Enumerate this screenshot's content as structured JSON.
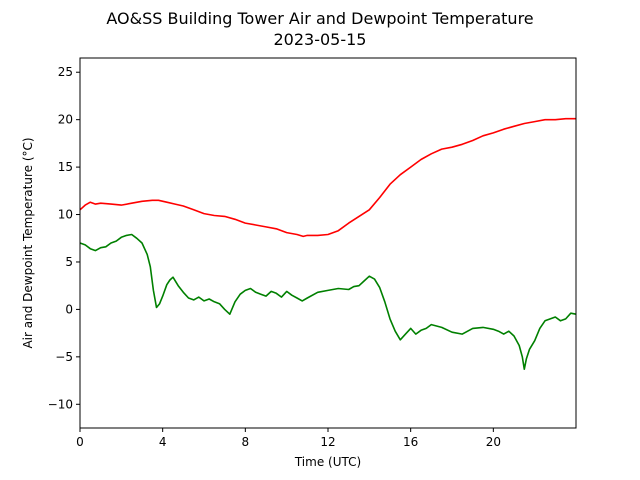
{
  "chart_data": {
    "type": "line",
    "title": "AO&SS Building Tower Air and Dewpoint Temperature",
    "subtitle": "2023-05-15",
    "xlabel": "Time (UTC)",
    "ylabel": "Air and Dewpoint Temperature (°C)",
    "xlim": [
      0,
      24
    ],
    "ylim": [
      -12.5,
      26.5
    ],
    "xticks": [
      0,
      4,
      8,
      12,
      16,
      20
    ],
    "yticks": [
      -10,
      -5,
      0,
      5,
      10,
      15,
      20,
      25
    ],
    "grid": false,
    "legend": "none",
    "series": [
      {
        "color": "#ff0000",
        "x": [
          0,
          0.25,
          0.5,
          0.75,
          1,
          1.5,
          2,
          2.5,
          3,
          3.5,
          3.8,
          4.2,
          4.6,
          5,
          5.5,
          6,
          6.5,
          7,
          7.5,
          8,
          8.5,
          9,
          9.5,
          10,
          10.5,
          10.8,
          11,
          11.5,
          12,
          12.5,
          13,
          13.5,
          14,
          14.5,
          15,
          15.5,
          16,
          16.5,
          17,
          17.5,
          18,
          18.5,
          19,
          19.5,
          20,
          20.5,
          21,
          21.5,
          22,
          22.5,
          23,
          23.5,
          24
        ],
        "y": [
          10.5,
          11.0,
          11.3,
          11.1,
          11.2,
          11.1,
          11.0,
          11.2,
          11.4,
          11.5,
          11.5,
          11.3,
          11.1,
          10.9,
          10.5,
          10.1,
          9.9,
          9.8,
          9.5,
          9.1,
          8.9,
          8.7,
          8.5,
          8.1,
          7.9,
          7.7,
          7.8,
          7.8,
          7.9,
          8.3,
          9.1,
          9.8,
          10.5,
          11.8,
          13.2,
          14.2,
          15.0,
          15.8,
          16.4,
          16.9,
          17.1,
          17.4,
          17.8,
          18.3,
          18.6,
          19.0,
          19.3,
          19.6,
          19.8,
          20.0,
          20.0,
          20.1,
          20.1
        ]
      },
      {
        "color": "#008000",
        "x": [
          0,
          0.25,
          0.5,
          0.75,
          1,
          1.25,
          1.5,
          1.75,
          2,
          2.25,
          2.5,
          2.75,
          3,
          3.25,
          3.4,
          3.55,
          3.7,
          3.85,
          4,
          4.2,
          4.35,
          4.5,
          4.75,
          5,
          5.25,
          5.5,
          5.75,
          6,
          6.25,
          6.5,
          6.75,
          7,
          7.25,
          7.5,
          7.75,
          8,
          8.25,
          8.5,
          8.75,
          9,
          9.25,
          9.5,
          9.75,
          10,
          10.25,
          10.5,
          10.75,
          11,
          11.5,
          12,
          12.5,
          13,
          13.25,
          13.5,
          13.75,
          14,
          14.25,
          14.5,
          14.75,
          15,
          15.25,
          15.5,
          15.75,
          16,
          16.25,
          16.5,
          16.75,
          17,
          17.5,
          18,
          18.5,
          19,
          19.5,
          20,
          20.25,
          20.5,
          20.75,
          21,
          21.25,
          21.4,
          21.5,
          21.6,
          21.75,
          22,
          22.25,
          22.5,
          22.75,
          23,
          23.25,
          23.5,
          23.75,
          24
        ],
        "y": [
          7.0,
          6.8,
          6.4,
          6.2,
          6.5,
          6.6,
          7.0,
          7.2,
          7.6,
          7.8,
          7.9,
          7.5,
          7.0,
          5.8,
          4.5,
          2.0,
          0.2,
          0.6,
          1.4,
          2.6,
          3.1,
          3.4,
          2.5,
          1.8,
          1.2,
          1.0,
          1.3,
          0.9,
          1.1,
          0.8,
          0.6,
          0.0,
          -0.5,
          0.8,
          1.6,
          2.0,
          2.2,
          1.8,
          1.6,
          1.4,
          1.9,
          1.7,
          1.3,
          1.9,
          1.5,
          1.2,
          0.9,
          1.2,
          1.8,
          2.0,
          2.2,
          2.1,
          2.4,
          2.5,
          3.0,
          3.5,
          3.2,
          2.3,
          0.8,
          -1.0,
          -2.3,
          -3.2,
          -2.6,
          -2.0,
          -2.6,
          -2.2,
          -2.0,
          -1.6,
          -1.9,
          -2.4,
          -2.6,
          -2.0,
          -1.9,
          -2.1,
          -2.3,
          -2.6,
          -2.3,
          -2.8,
          -3.8,
          -5.0,
          -6.3,
          -5.2,
          -4.2,
          -3.3,
          -2.0,
          -1.2,
          -1.0,
          -0.8,
          -1.2,
          -1.0,
          -0.4,
          -0.5
        ]
      }
    ]
  }
}
